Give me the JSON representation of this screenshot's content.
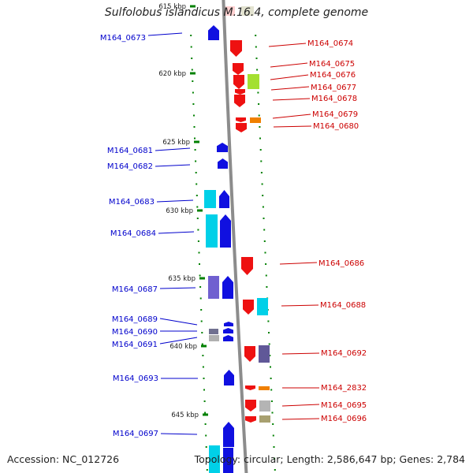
{
  "title": "Sulfolobus islandicus M.16.4, complete genome",
  "footer": {
    "accession": "Accession: NC_012726",
    "topology": "Topology: circular; Length: 2,586,647 bp; Genes: 2,784"
  },
  "colors": {
    "forward_label": "#0000cc",
    "reverse_label": "#cc0000",
    "tick": "#008000",
    "backbone": "#8c8c8c"
  },
  "kbp_marks": [
    "615 kbp",
    "620 kbp",
    "625 kbp",
    "630 kbp",
    "635 kbp",
    "640 kbp",
    "645 kbp"
  ],
  "genes_left": [
    "M164_0673",
    "M164_0681",
    "M164_0682",
    "M164_0683",
    "M164_0684",
    "M164_0687",
    "M164_0689",
    "M164_0690",
    "M164_0691",
    "M164_0693",
    "M164_0697"
  ],
  "genes_right": [
    "M164_0674",
    "M164_0675",
    "M164_0676",
    "M164_0677",
    "M164_0678",
    "M164_0679",
    "M164_0680",
    "M164_0686",
    "M164_0688",
    "M164_0692",
    "M164_2832",
    "M164_0695",
    "M164_0696"
  ]
}
